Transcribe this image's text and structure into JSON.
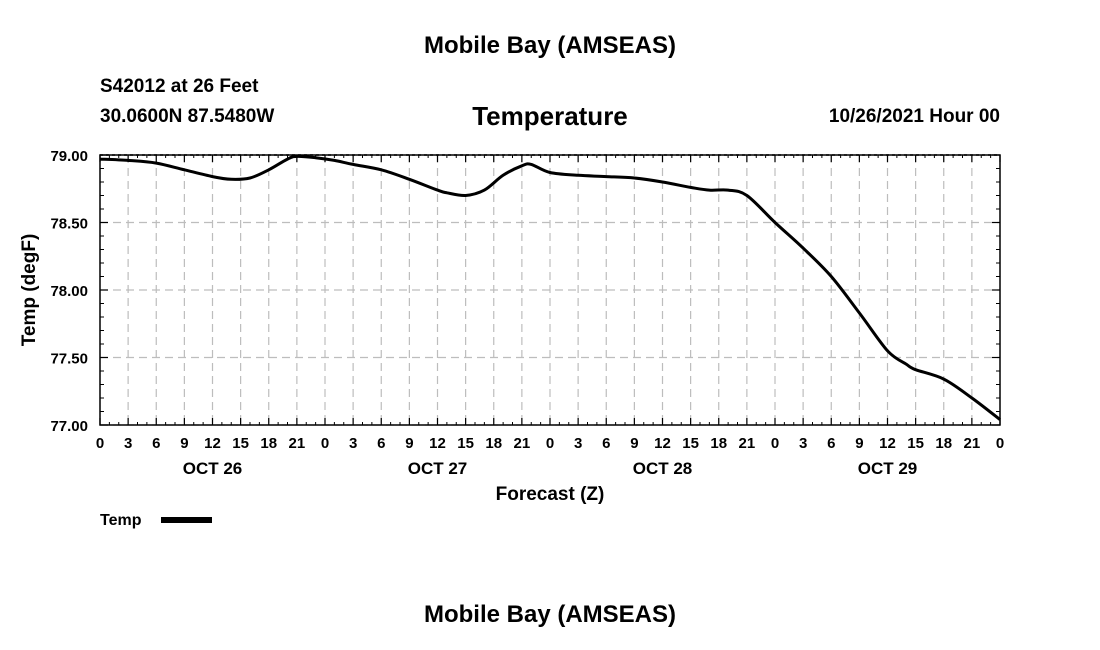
{
  "header": {
    "title": "Mobile Bay (AMSEAS)",
    "station": "S42012 at 26 Feet",
    "coords": "30.0600N  87.5480W",
    "chart_title": "Temperature",
    "datetime": "10/26/2021 Hour 00"
  },
  "footer": {
    "title": "Mobile Bay (AMSEAS)"
  },
  "chart_data": {
    "type": "line",
    "title": "Temperature",
    "xlabel": "Forecast (Z)",
    "ylabel": "Temp (degF)",
    "ylim": [
      77.0,
      79.0
    ],
    "xlim": [
      0,
      96
    ],
    "yticks": [
      "77.00",
      "77.50",
      "78.00",
      "78.50",
      "79.00"
    ],
    "ytick_values": [
      77.0,
      77.5,
      78.0,
      78.5,
      79.0
    ],
    "xtick_labels": [
      "0",
      "3",
      "6",
      "9",
      "12",
      "15",
      "18",
      "21",
      "0",
      "3",
      "6",
      "9",
      "12",
      "15",
      "18",
      "21",
      "0",
      "3",
      "6",
      "9",
      "12",
      "15",
      "18",
      "21",
      "0",
      "3",
      "6",
      "9",
      "12",
      "15",
      "18",
      "21",
      "0"
    ],
    "xtick_hours": [
      0,
      3,
      6,
      9,
      12,
      15,
      18,
      21,
      24,
      27,
      30,
      33,
      36,
      39,
      42,
      45,
      48,
      51,
      54,
      57,
      60,
      63,
      66,
      69,
      72,
      75,
      78,
      81,
      84,
      87,
      90,
      93,
      96
    ],
    "day_labels": [
      {
        "label": "OCT 26",
        "hour": 12
      },
      {
        "label": "OCT 27",
        "hour": 36
      },
      {
        "label": "OCT 28",
        "hour": 60
      },
      {
        "label": "OCT 29",
        "hour": 84
      }
    ],
    "grid": true,
    "legend": "bottom-left",
    "series": [
      {
        "name": "Temp",
        "x": [
          0,
          3,
          6,
          9,
          12,
          14,
          16,
          18,
          20,
          21,
          23,
          25,
          27,
          30,
          33,
          36,
          37,
          39,
          41,
          43,
          45,
          46,
          48,
          51,
          54,
          57,
          60,
          63,
          65,
          67,
          69,
          72,
          75,
          78,
          81,
          84,
          86,
          87,
          90,
          93,
          96
        ],
        "values": [
          78.97,
          78.96,
          78.94,
          78.89,
          78.84,
          78.82,
          78.83,
          78.89,
          78.97,
          78.99,
          78.98,
          78.96,
          78.93,
          78.89,
          78.82,
          78.74,
          78.72,
          78.7,
          78.74,
          78.85,
          78.92,
          78.93,
          78.87,
          78.85,
          78.84,
          78.83,
          78.8,
          78.76,
          78.74,
          78.74,
          78.7,
          78.5,
          78.31,
          78.1,
          77.83,
          77.55,
          77.45,
          77.41,
          77.34,
          77.2,
          77.04
        ]
      }
    ]
  }
}
